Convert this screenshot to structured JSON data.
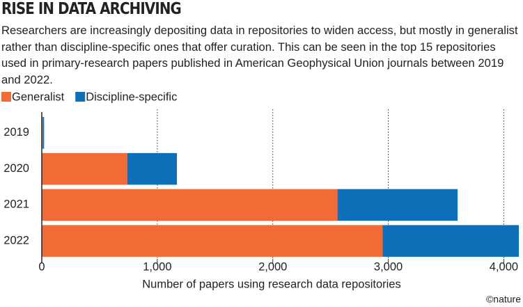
{
  "chart_data": {
    "type": "stacked_barh",
    "title": "RISE IN DATA ARCHIVING",
    "subtitle": "Researchers are increasingly depositing data in repositories to widen access, but mostly in generalist rather than discipline-specific ones that offer curation. This can be seen in the top 15 repositories used in primary-research papers published in American Geophysical Union journals between 2019 and 2022.",
    "categories": [
      "2019",
      "2020",
      "2021",
      "2022"
    ],
    "series": [
      {
        "name": "Generalist",
        "color": "#f26a36",
        "values": [
          10,
          740,
          2560,
          2950
        ]
      },
      {
        "name": "Discipline-specific",
        "color": "#0d6fb8",
        "values": [
          10,
          430,
          1040,
          1180
        ]
      }
    ],
    "x_label": "Number of papers using research data repositories",
    "xlim": [
      0,
      4130
    ],
    "xticks": [
      0,
      {
        "value": 1000,
        "label": "1,000"
      },
      {
        "value": 2000,
        "label": "2,000"
      },
      {
        "value": 3000,
        "label": "3,000"
      },
      {
        "value": 4000,
        "label": "4,000"
      }
    ],
    "grid": true,
    "legend": "top-left",
    "credit": "©nature"
  }
}
